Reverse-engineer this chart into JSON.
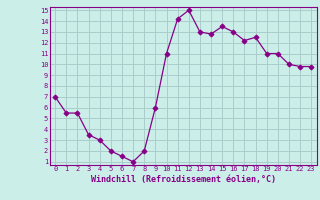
{
  "x": [
    0,
    1,
    2,
    3,
    4,
    5,
    6,
    7,
    8,
    9,
    10,
    11,
    12,
    13,
    14,
    15,
    16,
    17,
    18,
    19,
    20,
    21,
    22,
    23
  ],
  "y": [
    7.0,
    5.5,
    5.5,
    3.5,
    3.0,
    2.0,
    1.5,
    1.0,
    2.0,
    6.0,
    11.0,
    14.2,
    15.0,
    13.0,
    12.8,
    13.5,
    13.0,
    12.2,
    12.5,
    11.0,
    11.0,
    10.0,
    9.8,
    9.8
  ],
  "line_color": "#880088",
  "marker": "D",
  "bg_color": "#cceee8",
  "grid_color": "#aacccc",
  "axis_label_color": "#880088",
  "tick_color": "#880088",
  "xlabel": "Windchill (Refroidissement éolien,°C)",
  "ylim": [
    1,
    15
  ],
  "xlim": [
    0,
    23
  ],
  "yticks": [
    1,
    2,
    3,
    4,
    5,
    6,
    7,
    8,
    9,
    10,
    11,
    12,
    13,
    14,
    15
  ],
  "xticks": [
    0,
    1,
    2,
    3,
    4,
    5,
    6,
    7,
    8,
    9,
    10,
    11,
    12,
    13,
    14,
    15,
    16,
    17,
    18,
    19,
    20,
    21,
    22,
    23
  ]
}
